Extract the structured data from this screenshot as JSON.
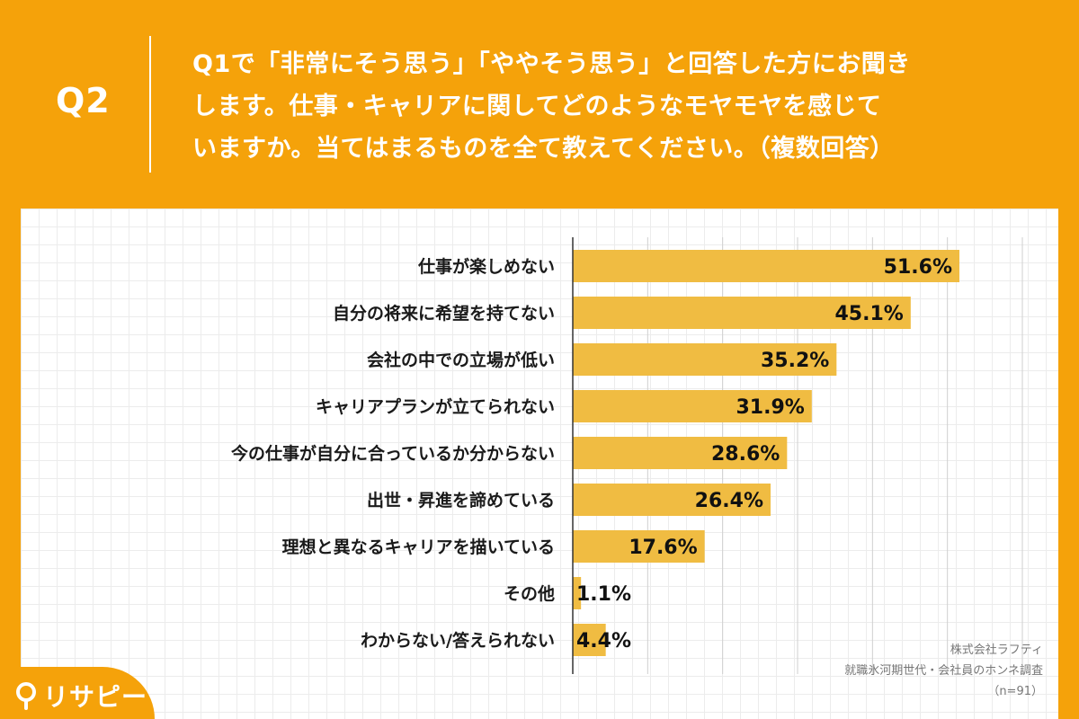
{
  "header": {
    "question_number": "Q2",
    "question_lines": [
      "Q1で「非常にそう思う」「ややそう思う」と回答した方にお聞き",
      "します。仕事・キャリアに関してどのようなモヤモヤを感じて",
      "いますか。当てはまるものを全て教えてください。（複数回答）"
    ]
  },
  "chart_data": {
    "type": "bar",
    "orientation": "horizontal",
    "categories": [
      "仕事が楽しめない",
      "自分の将来に希望を持てない",
      "会社の中での立場が低い",
      "キャリアプランが立てられない",
      "今の仕事が自分に合っているか分からない",
      "出世・昇進を諦めている",
      "理想と異なるキャリアを描いている",
      "その他",
      "わからない/答えられない"
    ],
    "values": [
      51.6,
      45.1,
      35.2,
      31.9,
      28.6,
      26.4,
      17.6,
      1.1,
      4.4
    ],
    "value_labels": [
      "51.6%",
      "45.1%",
      "35.2%",
      "31.9%",
      "28.6%",
      "26.4%",
      "17.6%",
      "1.1%",
      "4.4%"
    ],
    "xlim": [
      0,
      60
    ],
    "grid": true,
    "bar_color": "#f0bc42"
  },
  "source": {
    "company": "株式会社ラフティ",
    "survey": "就職氷河期世代・会社員のホンネ調査",
    "sample": "（n=91）"
  },
  "logo": {
    "text": "リサピー"
  },
  "colors": {
    "background": "#f5a20a",
    "bar": "#f0bc42",
    "panel": "#ffffff"
  }
}
